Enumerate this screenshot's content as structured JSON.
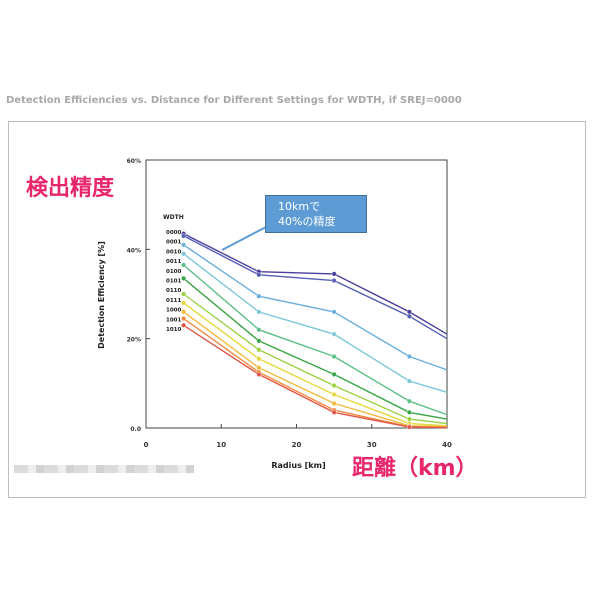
{
  "page": {
    "title": "Detection Efficiencies vs. Distance for Different Settings for WDTH, if SREJ=0000"
  },
  "annotations": {
    "y_label_jp": "検出精度",
    "x_label_jp": "距離（km）",
    "callout_line1": "10kmで",
    "callout_line2": "40%の精度"
  },
  "chart_data": {
    "type": "line",
    "xlabel": "Radius [km]",
    "ylabel": "Detection Efficiency [%]",
    "xlim": [
      0,
      40
    ],
    "ylim": [
      0,
      60
    ],
    "x_ticks": [
      0,
      10,
      20,
      30,
      40
    ],
    "y_ticks": [
      0,
      20,
      40,
      60
    ],
    "x_tick_labels": [
      "0",
      "10",
      "20",
      "30",
      "40"
    ],
    "y_tick_labels": [
      "0.0",
      "20%",
      "40%",
      "60%"
    ],
    "grid": false,
    "legend_title": "WDTH",
    "legend_position": "left",
    "x": [
      5,
      15,
      25,
      35,
      40
    ],
    "series": [
      {
        "name": "0000",
        "color": "#4a3f9e",
        "values": [
          43.5,
          35,
          34.5,
          26,
          21
        ]
      },
      {
        "name": "0001",
        "color": "#5560b5",
        "values": [
          43,
          34.3,
          33,
          25,
          20
        ]
      },
      {
        "name": "0010",
        "color": "#6aaede",
        "values": [
          41,
          29.5,
          26,
          16,
          13
        ]
      },
      {
        "name": "0011",
        "color": "#7cc8d9",
        "values": [
          39,
          26,
          21,
          10.5,
          8
        ]
      },
      {
        "name": "0100",
        "color": "#5cbf86",
        "values": [
          36.5,
          22,
          16,
          6,
          3
        ]
      },
      {
        "name": "0101",
        "color": "#39a647",
        "values": [
          33.5,
          19.5,
          12,
          3.5,
          2
        ]
      },
      {
        "name": "0110",
        "color": "#9cd146",
        "values": [
          30,
          17.5,
          9.5,
          2,
          1
        ]
      },
      {
        "name": "0111",
        "color": "#e3d93d",
        "values": [
          28,
          15.5,
          7.5,
          1,
          0.5
        ]
      },
      {
        "name": "1000",
        "color": "#f2b83c",
        "values": [
          26,
          13.5,
          5.5,
          0.5,
          0.3
        ]
      },
      {
        "name": "1001",
        "color": "#f08a3e",
        "values": [
          24.5,
          12.5,
          4,
          0.3,
          0.1
        ]
      },
      {
        "name": "1010",
        "color": "#e0584a",
        "values": [
          23,
          12,
          3.5,
          0.2,
          0.1
        ]
      }
    ]
  }
}
